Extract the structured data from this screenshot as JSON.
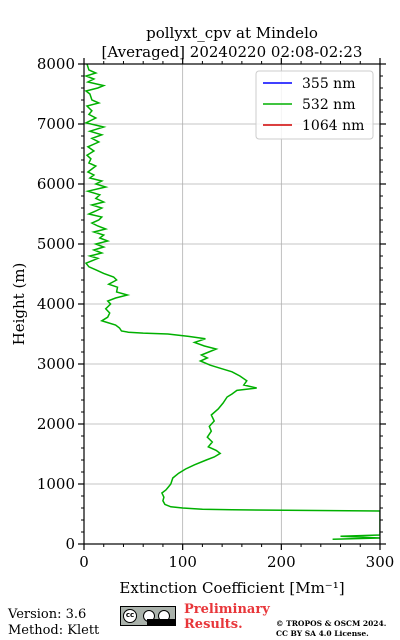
{
  "chart_data": {
    "type": "line",
    "title": [
      "pollyxt_cpv at Mindelo",
      "[Averaged] 20240220 02:08-02:23"
    ],
    "xlabel": "Extinction Coefficient [Mm⁻¹]",
    "ylabel": "Height (m)",
    "xlim": [
      0,
      300
    ],
    "ylim": [
      0,
      8000
    ],
    "xticks": [
      0,
      100,
      200,
      300
    ],
    "yticks": [
      0,
      1000,
      2000,
      3000,
      4000,
      5000,
      6000,
      7000,
      8000
    ],
    "grid": true,
    "legend_position": "top-right",
    "series": [
      {
        "name": "355 nm",
        "color": "#0000ff",
        "points": []
      },
      {
        "name": "532 nm",
        "color": "#00b000",
        "points": [
          [
            252,
            80
          ],
          [
            300,
            100
          ],
          [
            260,
            130
          ],
          [
            300,
            150
          ],
          [
            300,
            550
          ],
          [
            150,
            570
          ],
          [
            120,
            580
          ],
          [
            100,
            600
          ],
          [
            88,
            620
          ],
          [
            82,
            660
          ],
          [
            80,
            720
          ],
          [
            81,
            780
          ],
          [
            79,
            850
          ],
          [
            83,
            900
          ],
          [
            86,
            960
          ],
          [
            88,
            1000
          ],
          [
            90,
            1100
          ],
          [
            96,
            1180
          ],
          [
            103,
            1250
          ],
          [
            112,
            1320
          ],
          [
            124,
            1400
          ],
          [
            132,
            1450
          ],
          [
            138,
            1510
          ],
          [
            134,
            1560
          ],
          [
            126,
            1620
          ],
          [
            130,
            1700
          ],
          [
            125,
            1780
          ],
          [
            129,
            1880
          ],
          [
            127,
            1960
          ],
          [
            132,
            2050
          ],
          [
            129,
            2150
          ],
          [
            136,
            2250
          ],
          [
            141,
            2350
          ],
          [
            145,
            2450
          ],
          [
            150,
            2500
          ],
          [
            155,
            2560
          ],
          [
            175,
            2600
          ],
          [
            162,
            2650
          ],
          [
            165,
            2720
          ],
          [
            158,
            2800
          ],
          [
            150,
            2870
          ],
          [
            140,
            2920
          ],
          [
            128,
            2980
          ],
          [
            118,
            3050
          ],
          [
            125,
            3100
          ],
          [
            119,
            3150
          ],
          [
            134,
            3250
          ],
          [
            122,
            3300
          ],
          [
            112,
            3360
          ],
          [
            123,
            3420
          ],
          [
            106,
            3460
          ],
          [
            85,
            3500
          ],
          [
            60,
            3515
          ],
          [
            45,
            3530
          ],
          [
            38,
            3550
          ],
          [
            36,
            3600
          ],
          [
            32,
            3650
          ],
          [
            22,
            3700
          ],
          [
            18,
            3720
          ],
          [
            24,
            3780
          ],
          [
            26,
            3850
          ],
          [
            22,
            3920
          ],
          [
            27,
            4000
          ],
          [
            24,
            4050
          ],
          [
            32,
            4100
          ],
          [
            44,
            4150
          ],
          [
            33,
            4200
          ],
          [
            34,
            4280
          ],
          [
            25,
            4330
          ],
          [
            33,
            4400
          ],
          [
            30,
            4450
          ],
          [
            20,
            4510
          ],
          [
            12,
            4570
          ],
          [
            5,
            4620
          ],
          [
            2,
            4680
          ],
          [
            8,
            4720
          ],
          [
            14,
            4760
          ],
          [
            6,
            4800
          ],
          [
            18,
            4850
          ],
          [
            10,
            4900
          ],
          [
            20,
            4950
          ],
          [
            12,
            5000
          ],
          [
            24,
            5050
          ],
          [
            16,
            5100
          ],
          [
            20,
            5150
          ],
          [
            10,
            5200
          ],
          [
            22,
            5250
          ],
          [
            14,
            5300
          ],
          [
            8,
            5350
          ],
          [
            15,
            5400
          ],
          [
            18,
            5450
          ],
          [
            5,
            5500
          ],
          [
            12,
            5550
          ],
          [
            18,
            5600
          ],
          [
            8,
            5650
          ],
          [
            20,
            5700
          ],
          [
            12,
            5760
          ],
          [
            16,
            5820
          ],
          [
            4,
            5880
          ],
          [
            22,
            5950
          ],
          [
            12,
            6000
          ],
          [
            18,
            6050
          ],
          [
            6,
            6100
          ],
          [
            10,
            6150
          ],
          [
            4,
            6200
          ],
          [
            8,
            6250
          ],
          [
            12,
            6300
          ],
          [
            5,
            6350
          ],
          [
            7,
            6420
          ],
          [
            3,
            6480
          ],
          [
            10,
            6550
          ],
          [
            4,
            6620
          ],
          [
            15,
            6700
          ],
          [
            8,
            6760
          ],
          [
            18,
            6820
          ],
          [
            6,
            6880
          ],
          [
            20,
            6950
          ],
          [
            2,
            7020
          ],
          [
            12,
            7100
          ],
          [
            5,
            7160
          ],
          [
            8,
            7220
          ],
          [
            3,
            7300
          ],
          [
            15,
            7350
          ],
          [
            8,
            7400
          ],
          [
            6,
            7500
          ],
          [
            2,
            7550
          ],
          [
            14,
            7600
          ],
          [
            20,
            7640
          ],
          [
            4,
            7700
          ],
          [
            10,
            7750
          ],
          [
            2,
            7800
          ],
          [
            12,
            7850
          ],
          [
            5,
            7900
          ],
          [
            3,
            8000
          ]
        ]
      },
      {
        "name": "1064 nm",
        "color": "#d00000",
        "points": []
      }
    ]
  },
  "footer": {
    "version": "Version: 3.6",
    "method": "Method: Klett",
    "preliminary": [
      "Preliminary",
      "Results."
    ],
    "copyright": [
      "© TROPOS & OSCM 2024.",
      "CC BY SA 4.0 License."
    ]
  },
  "icons": {
    "license": "cc-by-sa-badge-icon"
  }
}
